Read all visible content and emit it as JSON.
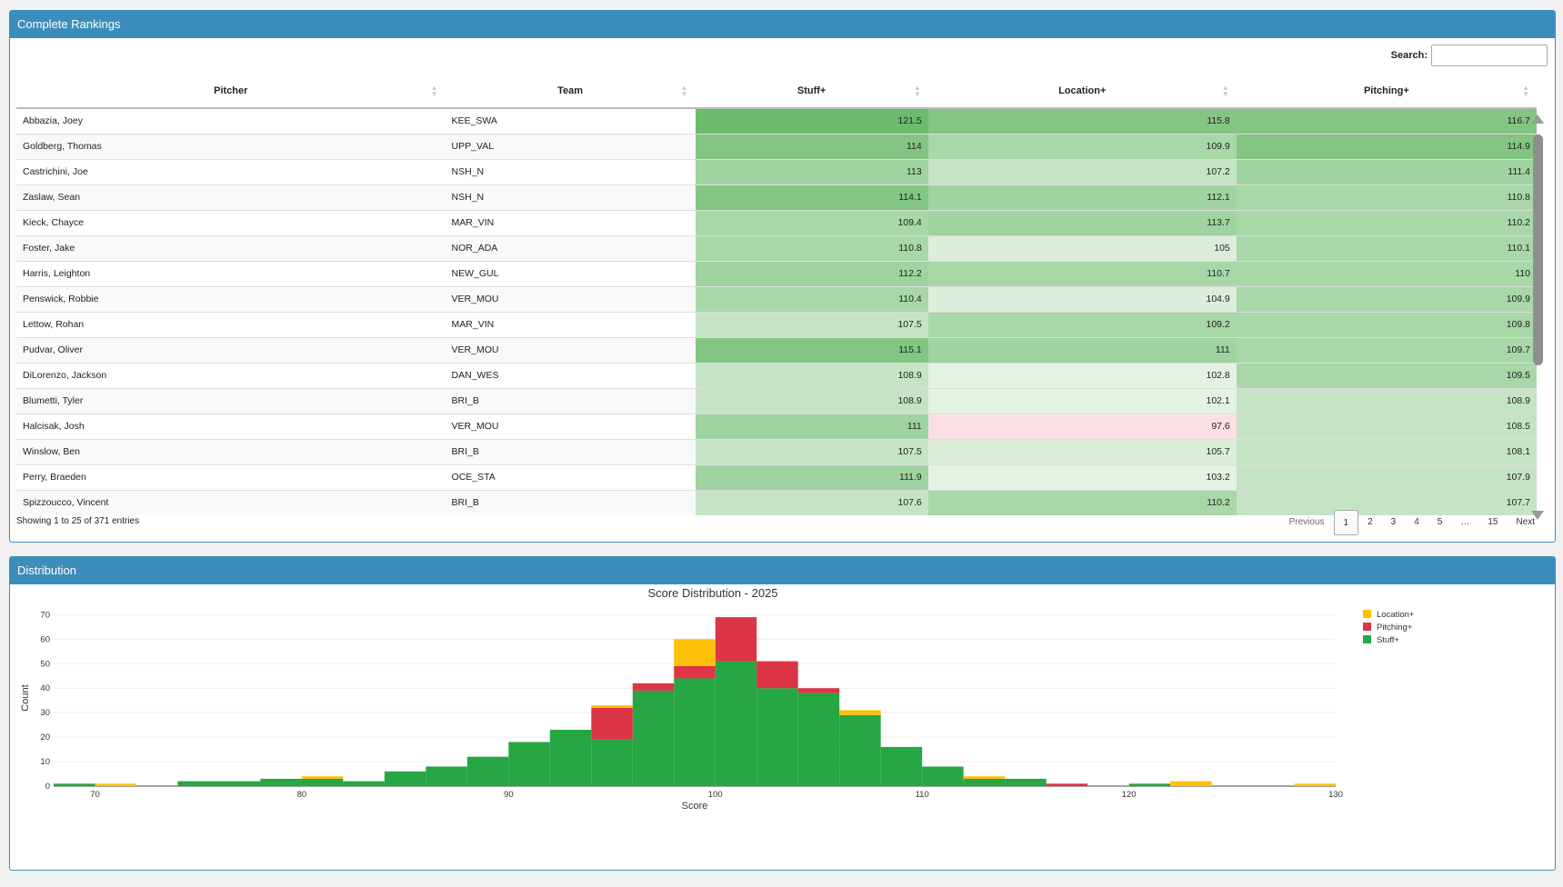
{
  "rankings": {
    "title": "Complete Rankings",
    "search_label": "Search:",
    "search_value": "",
    "columns": [
      "Pitcher",
      "Team",
      "Stuff+",
      "Location+",
      "Pitching+"
    ],
    "rows": [
      {
        "pitcher": "Abbazia, Joey",
        "team": "KEE_SWA",
        "stuff": "121.5",
        "location": "115.8",
        "pitching": "116.7"
      },
      {
        "pitcher": "Goldberg, Thomas",
        "team": "UPP_VAL",
        "stuff": "114",
        "location": "109.9",
        "pitching": "114.9"
      },
      {
        "pitcher": "Castrichini, Joe",
        "team": "NSH_N",
        "stuff": "113",
        "location": "107.2",
        "pitching": "111.4"
      },
      {
        "pitcher": "Zaslaw, Sean",
        "team": "NSH_N",
        "stuff": "114.1",
        "location": "112.1",
        "pitching": "110.8"
      },
      {
        "pitcher": "Kieck, Chayce",
        "team": "MAR_VIN",
        "stuff": "109.4",
        "location": "113.7",
        "pitching": "110.2"
      },
      {
        "pitcher": "Foster, Jake",
        "team": "NOR_ADA",
        "stuff": "110.8",
        "location": "105",
        "pitching": "110.1"
      },
      {
        "pitcher": "Harris, Leighton",
        "team": "NEW_GUL",
        "stuff": "112.2",
        "location": "110.7",
        "pitching": "110"
      },
      {
        "pitcher": "Penswick, Robbie",
        "team": "VER_MOU",
        "stuff": "110.4",
        "location": "104.9",
        "pitching": "109.9"
      },
      {
        "pitcher": "Lettow, Rohan",
        "team": "MAR_VIN",
        "stuff": "107.5",
        "location": "109.2",
        "pitching": "109.8"
      },
      {
        "pitcher": "Pudvar, Oliver",
        "team": "VER_MOU",
        "stuff": "115.1",
        "location": "111",
        "pitching": "109.7"
      },
      {
        "pitcher": "DiLorenzo, Jackson",
        "team": "DAN_WES",
        "stuff": "108.9",
        "location": "102.8",
        "pitching": "109.5"
      },
      {
        "pitcher": "Blumetti, Tyler",
        "team": "BRI_B",
        "stuff": "108.9",
        "location": "102.1",
        "pitching": "108.9"
      },
      {
        "pitcher": "Halcisak, Josh",
        "team": "VER_MOU",
        "stuff": "111",
        "location": "97.6",
        "pitching": "108.5"
      },
      {
        "pitcher": "Winslow, Ben",
        "team": "BRI_B",
        "stuff": "107.5",
        "location": "105.7",
        "pitching": "108.1"
      },
      {
        "pitcher": "Perry, Braeden",
        "team": "OCE_STA",
        "stuff": "111.9",
        "location": "103.2",
        "pitching": "107.9"
      },
      {
        "pitcher": "Spizzoucco, Vincent",
        "team": "BRI_B",
        "stuff": "107.6",
        "location": "110.2",
        "pitching": "107.7"
      }
    ],
    "info": "Showing 1 to 25 of 371 entries",
    "pagination": {
      "previous": "Previous",
      "pages": [
        "1",
        "2",
        "3",
        "4",
        "5",
        "…",
        "15"
      ],
      "current": "1",
      "next": "Next"
    }
  },
  "distribution": {
    "title": "Distribution"
  },
  "chart_data": {
    "type": "bar",
    "stacked": true,
    "title": "Score Distribution - 2025",
    "xlabel": "Score",
    "ylabel": "Count",
    "xlim": [
      68,
      130
    ],
    "ylim": [
      0,
      72
    ],
    "xticks": [
      70,
      80,
      90,
      100,
      110,
      120,
      130
    ],
    "yticks": [
      0,
      10,
      20,
      30,
      40,
      50,
      60,
      70
    ],
    "bin_width": 2,
    "bin_starts": [
      68,
      70,
      72,
      74,
      76,
      78,
      80,
      82,
      84,
      86,
      88,
      90,
      92,
      94,
      96,
      98,
      100,
      102,
      104,
      106,
      108,
      110,
      112,
      114,
      116,
      118,
      120,
      122,
      124,
      126,
      128
    ],
    "legend_position": "top-right",
    "series": [
      {
        "name": "Stuff+",
        "color": "#27a644",
        "values": [
          1,
          0,
          0,
          2,
          2,
          3,
          3,
          2,
          6,
          8,
          12,
          18,
          23,
          19,
          39,
          44,
          51,
          40,
          38,
          29,
          16,
          8,
          3,
          3,
          0,
          0,
          1,
          0,
          0,
          0,
          0
        ]
      },
      {
        "name": "Pitching+",
        "color": "#dc3545",
        "values": [
          0,
          0,
          0,
          0,
          0,
          0,
          0,
          0,
          0,
          0,
          0,
          0,
          0,
          13,
          3,
          5,
          18,
          11,
          2,
          0,
          0,
          0,
          0,
          0,
          1,
          0,
          0,
          0,
          0,
          0,
          0
        ]
      },
      {
        "name": "Location+",
        "color": "#ffc107",
        "values": [
          0,
          1,
          0,
          0,
          0,
          0,
          1,
          0,
          0,
          0,
          0,
          0,
          0,
          1,
          0,
          11,
          0,
          0,
          0,
          2,
          0,
          0,
          1,
          0,
          0,
          0,
          0,
          2,
          0,
          0,
          1
        ]
      }
    ]
  }
}
